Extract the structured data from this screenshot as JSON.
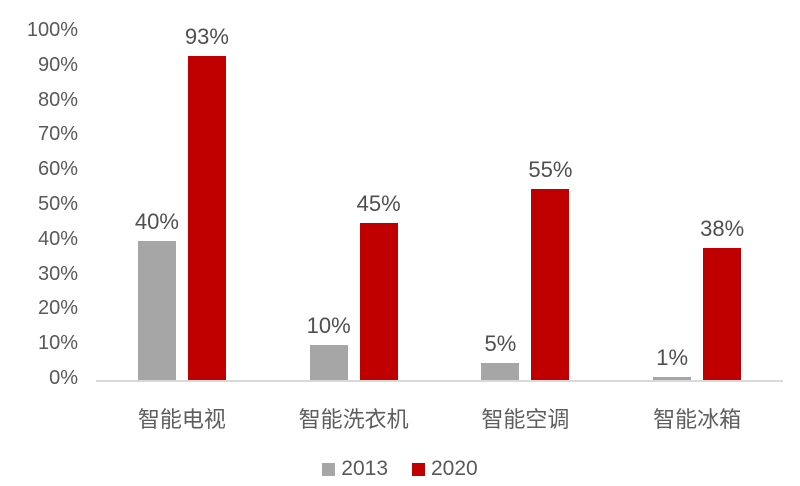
{
  "chart_data": {
    "type": "bar",
    "title": "",
    "xlabel": "",
    "ylabel": "",
    "categories": [
      "智能电视",
      "智能洗衣机",
      "智能空调",
      "智能冰箱"
    ],
    "series": [
      {
        "name": "2013",
        "color": "#a6a6a6",
        "values": [
          40,
          10,
          5,
          1
        ],
        "labels": [
          "40%",
          "10%",
          "5%",
          "1%"
        ]
      },
      {
        "name": "2020",
        "color": "#c00000",
        "values": [
          93,
          45,
          55,
          38
        ],
        "labels": [
          "93%",
          "45%",
          "55%",
          "38%"
        ]
      }
    ],
    "ylim": [
      0,
      100
    ],
    "yticks": [
      0,
      10,
      20,
      30,
      40,
      50,
      60,
      70,
      80,
      90,
      100
    ],
    "ytick_suffix": "%",
    "grid": false,
    "legend_position": "bottom"
  },
  "colors": {
    "axis_line": "#d9d9d9",
    "tick_text": "#595959",
    "bar_label_text": "#4f4f4f",
    "category_text": "#5e5e5e",
    "background": "#ffffff"
  }
}
